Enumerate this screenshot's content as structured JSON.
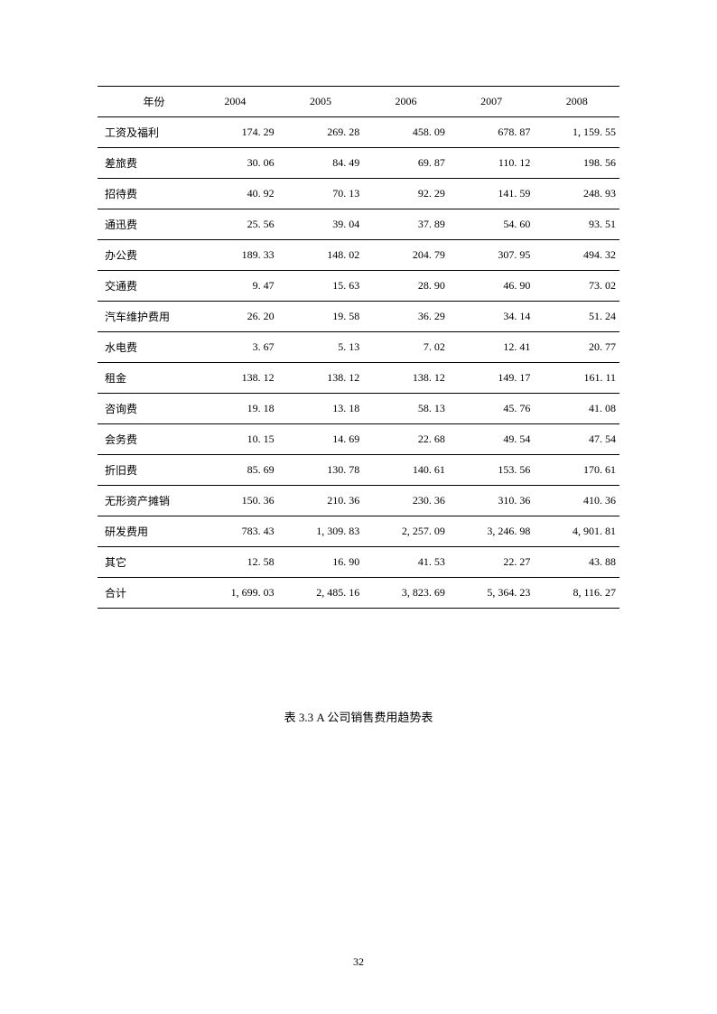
{
  "table": {
    "header_label": "年份",
    "years": [
      "2004",
      "2005",
      "2006",
      "2007",
      "2008"
    ],
    "rows": [
      {
        "label": "工资及福利",
        "values": [
          "174. 29",
          "269. 28",
          "458. 09",
          "678. 87",
          "1, 159. 55"
        ]
      },
      {
        "label": "差旅费",
        "values": [
          "30. 06",
          "84. 49",
          "69. 87",
          "110. 12",
          "198. 56"
        ]
      },
      {
        "label": "招待费",
        "values": [
          "40. 92",
          "70. 13",
          "92. 29",
          "141. 59",
          "248. 93"
        ]
      },
      {
        "label": "通迅费",
        "values": [
          "25. 56",
          "39. 04",
          "37. 89",
          "54. 60",
          "93. 51"
        ]
      },
      {
        "label": "办公费",
        "values": [
          "189. 33",
          "148. 02",
          "204. 79",
          "307. 95",
          "494. 32"
        ]
      },
      {
        "label": "交通费",
        "values": [
          "9. 47",
          "15. 63",
          "28. 90",
          "46. 90",
          "73. 02"
        ]
      },
      {
        "label": "汽车维护费用",
        "values": [
          "26. 20",
          "19. 58",
          "36. 29",
          "34. 14",
          "51. 24"
        ]
      },
      {
        "label": "水电费",
        "values": [
          "3. 67",
          "5. 13",
          "7. 02",
          "12. 41",
          "20. 77"
        ]
      },
      {
        "label": "租金",
        "values": [
          "138. 12",
          "138. 12",
          "138. 12",
          "149. 17",
          "161. 11"
        ]
      },
      {
        "label": "咨询费",
        "values": [
          "19. 18",
          "13. 18",
          "58. 13",
          "45. 76",
          "41. 08"
        ]
      },
      {
        "label": "会务费",
        "values": [
          "10. 15",
          "14. 69",
          "22. 68",
          "49. 54",
          "47. 54"
        ]
      },
      {
        "label": "折旧费",
        "values": [
          "85. 69",
          "130. 78",
          "140. 61",
          "153. 56",
          "170. 61"
        ]
      },
      {
        "label": "无形资产摊销",
        "values": [
          "150. 36",
          "210. 36",
          "230. 36",
          "310. 36",
          "410. 36"
        ]
      },
      {
        "label": "研发费用",
        "values": [
          "783. 43",
          "1, 309. 83",
          "2, 257. 09",
          "3, 246. 98",
          "4, 901. 81"
        ]
      },
      {
        "label": "其它",
        "values": [
          "12. 58",
          "16. 90",
          "41. 53",
          "22. 27",
          "43. 88"
        ]
      },
      {
        "label": "合计",
        "values": [
          "1, 699. 03",
          "2, 485. 16",
          "3, 823. 69",
          "5, 364. 23",
          "8, 116. 27"
        ]
      }
    ],
    "border_color": "#000000",
    "text_color": "#000000",
    "background_color": "#ffffff",
    "font_size": 12
  },
  "caption": "表 3.3 A 公司销售费用趋势表",
  "page_number": "32"
}
